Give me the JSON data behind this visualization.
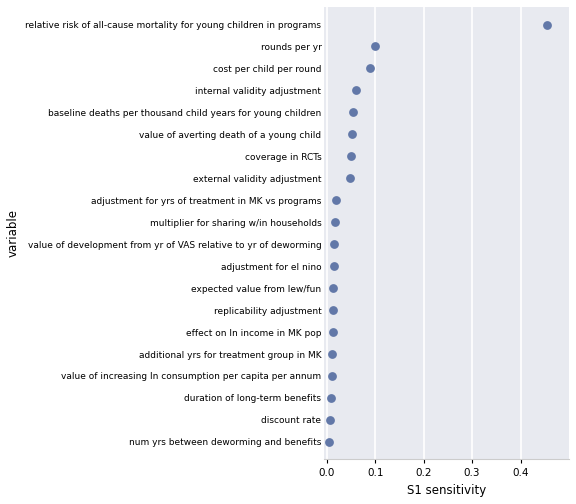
{
  "variables": [
    "relative risk of all-cause mortality for young children in programs",
    "rounds per yr",
    "cost per child per round",
    "internal validity adjustment",
    "baseline deaths per thousand child years for young children",
    "value of averting death of a young child",
    "coverage in RCTs",
    "external validity adjustment",
    "adjustment for yrs of treatment in MK vs programs",
    "multiplier for sharing w/in households",
    "value of development from yr of VAS relative to yr of deworming",
    "adjustment for el nino",
    "expected value from lew/fun",
    "replicability adjustment",
    "effect on ln income in MK pop",
    "additional yrs for treatment group in MK",
    "value of increasing ln consumption per capita per annum",
    "duration of long-term benefits",
    "discount rate",
    "num yrs between deworming and benefits"
  ],
  "values": [
    0.455,
    0.1,
    0.09,
    0.06,
    0.054,
    0.052,
    0.05,
    0.048,
    0.02,
    0.018,
    0.016,
    0.015,
    0.014,
    0.013,
    0.012,
    0.011,
    0.01,
    0.008,
    0.007,
    0.005
  ],
  "dot_color": "#6278a8",
  "bg_color": "#e8eaf0",
  "xlabel": "S1 sensitivity",
  "ylabel": "variable",
  "xlim": [
    -0.005,
    0.5
  ],
  "xticks": [
    0.0,
    0.1,
    0.2,
    0.3,
    0.4
  ],
  "figsize": [
    5.76,
    5.04
  ],
  "dpi": 100,
  "dot_size": 40,
  "label_fontsize": 6.5,
  "axis_label_fontsize": 8.5,
  "tick_fontsize": 7.5,
  "grid_color": "#ffffff",
  "grid_linewidth": 1.2
}
